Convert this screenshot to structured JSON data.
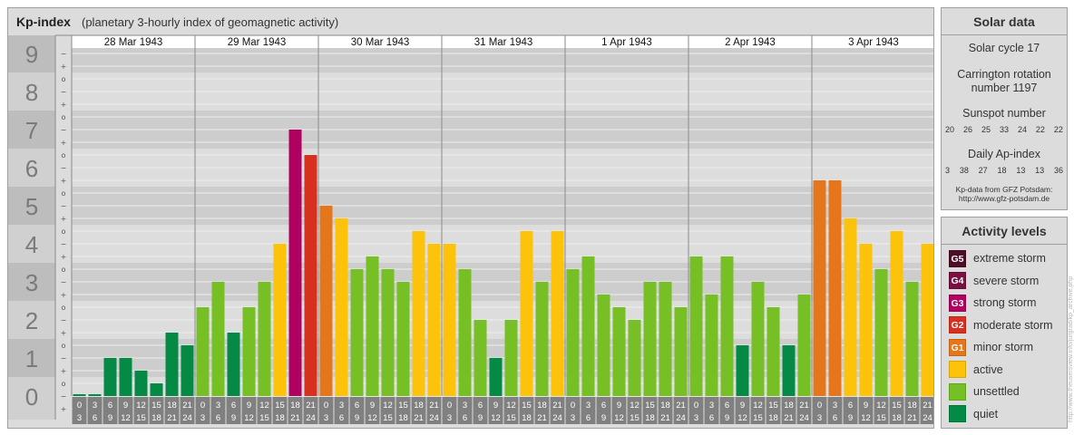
{
  "header": {
    "title": "Kp-index",
    "subtitle": "(planetary 3-hourly index of geomagnetic activity)"
  },
  "chart_data": {
    "type": "bar",
    "title": "Kp-index",
    "subtitle": "(planetary 3-hourly index of geomagnetic activity)",
    "ylim": [
      0,
      9
    ],
    "y_major_ticks": [
      "0",
      "1",
      "2",
      "3",
      "4",
      "5",
      "6",
      "7",
      "8",
      "9"
    ],
    "y_minor_ticks": [
      "−",
      "o",
      "+"
    ],
    "days": [
      "28 Mar 1943",
      "29 Mar 1943",
      "30 Mar 1943",
      "31 Mar 1943",
      "1 Apr 1943",
      "2 Apr 1943",
      "3 Apr 1943"
    ],
    "intervals": [
      [
        "0",
        "3"
      ],
      [
        "3",
        "6"
      ],
      [
        "6",
        "9"
      ],
      [
        "9",
        "12"
      ],
      [
        "12",
        "15"
      ],
      [
        "15",
        "18"
      ],
      [
        "18",
        "21"
      ],
      [
        "21",
        "24"
      ]
    ],
    "values": [
      [
        0,
        0,
        1.0,
        1.0,
        0.667,
        0.333,
        1.667,
        1.333
      ],
      [
        2.333,
        3.0,
        1.667,
        2.333,
        3.0,
        4.0,
        7.0,
        6.333
      ],
      [
        5.0,
        4.667,
        3.333,
        3.667,
        3.333,
        3.0,
        4.333,
        4.0
      ],
      [
        4.0,
        3.333,
        2.0,
        1.0,
        2.0,
        4.333,
        3.0,
        4.333
      ],
      [
        3.333,
        3.667,
        2.667,
        2.333,
        2.0,
        3.0,
        3.0,
        2.333
      ],
      [
        3.667,
        2.667,
        3.667,
        1.333,
        3.0,
        2.333,
        1.333,
        2.667
      ],
      [
        5.667,
        5.667,
        4.667,
        4.0,
        3.333,
        4.333,
        3.0,
        4.0
      ]
    ],
    "grid": true
  },
  "solar": {
    "title": "Solar data",
    "cycle": "Solar cycle 17",
    "carrington_1": "Carrington rotation",
    "carrington_2": "number 1197",
    "sunspot_title": "Sunspot number",
    "sunspot_numbers": [
      "20",
      "26",
      "25",
      "33",
      "24",
      "22",
      "22"
    ],
    "ap_title": "Daily Ap-index",
    "ap_values": [
      "3",
      "38",
      "27",
      "18",
      "13",
      "13",
      "36"
    ],
    "source_1": "Kp-data from GFZ Potsdam:",
    "source_2": "http://www.gfz-potsdam.de"
  },
  "activity": {
    "title": "Activity levels",
    "levels": [
      {
        "badge": "G5",
        "label": "extreme storm",
        "color": "#4d0f28"
      },
      {
        "badge": "G4",
        "label": "severe storm",
        "color": "#7a1040"
      },
      {
        "badge": "G3",
        "label": "strong storm",
        "color": "#b00060"
      },
      {
        "badge": "G2",
        "label": "moderate storm",
        "color": "#d7301f"
      },
      {
        "badge": "G1",
        "label": "minor storm",
        "color": "#e6761b"
      },
      {
        "badge": "",
        "label": "active",
        "color": "#fdc20a"
      },
      {
        "badge": "",
        "label": "unsettled",
        "color": "#76c025"
      },
      {
        "badge": "",
        "label": "quiet",
        "color": "#058a45"
      }
    ]
  },
  "watermark": "http://www.theusersview.info/jurgrad/kp_archive.php"
}
